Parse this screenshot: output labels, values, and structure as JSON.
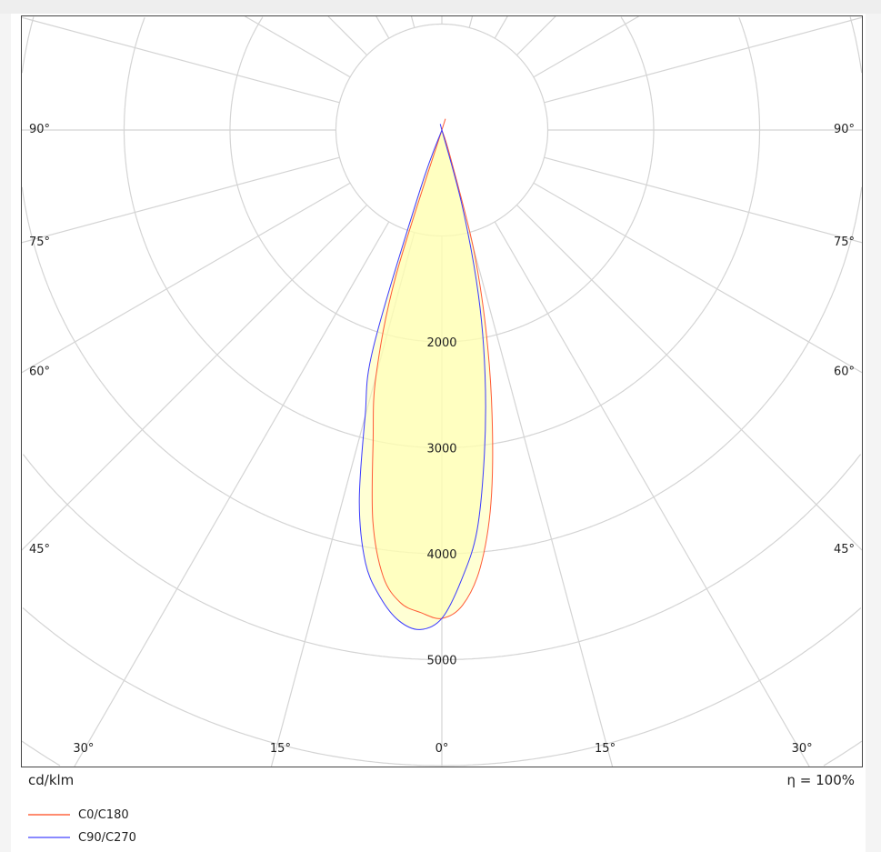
{
  "chart_data": {
    "type": "polar",
    "unit_label": "cd/klm",
    "efficiency_label": "η = 100%",
    "radial_max": 7000,
    "radial_step": 1000,
    "radial_tick_labels": [
      "2000",
      "3000",
      "4000",
      "5000"
    ],
    "radial_tick_values": [
      2000,
      3000,
      4000,
      5000
    ],
    "angle_grid_step": 15,
    "side_angle_labels": [
      "90°",
      "75°",
      "60°",
      "45°"
    ],
    "side_angle_values": [
      90,
      75,
      60,
      45
    ],
    "bottom_angle_labels": [
      "30°",
      "15°",
      "0°",
      "15°",
      "30°"
    ],
    "bottom_angle_values": [
      -30,
      -15,
      0,
      15,
      30
    ],
    "grid": true,
    "legend_position": "bottom-left",
    "angles": [
      0,
      2.5,
      5,
      7.5,
      10,
      12.5,
      15,
      17.5,
      20,
      22.5
    ],
    "series": [
      {
        "name": "C0/C180",
        "color": "#ff5a36",
        "left_values": [
          4610,
          4560,
          4480,
          4250,
          3750,
          3000,
          2400,
          1450,
          0,
          0
        ],
        "right_values": [
          4610,
          4490,
          4150,
          3550,
          2730,
          1910,
          1130,
          250,
          0,
          0
        ]
      },
      {
        "name": "C90/C270",
        "color": "#3a3aff",
        "left_values": [
          4610,
          4720,
          4650,
          4450,
          4150,
          3600,
          2800,
          2150,
          600,
          0
        ],
        "right_values": [
          4610,
          4250,
          3800,
          3080,
          2350,
          1600,
          750,
          0,
          0,
          0
        ]
      }
    ],
    "fill_color": "#ffffb0"
  }
}
